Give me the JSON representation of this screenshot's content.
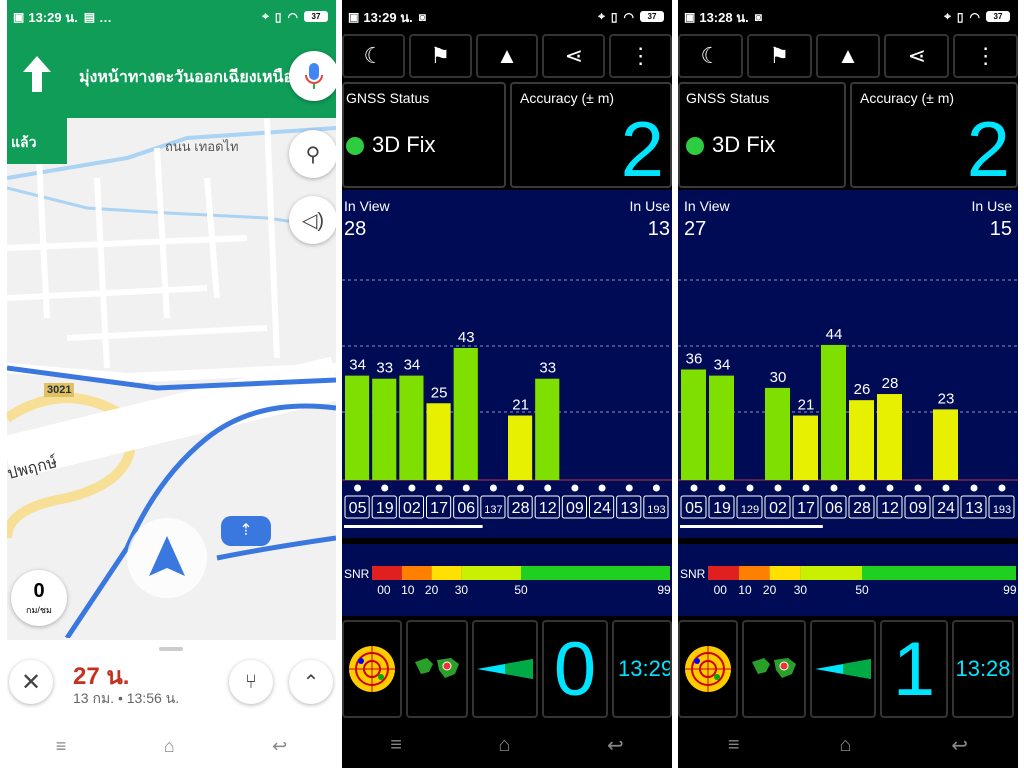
{
  "map": {
    "status": {
      "time": "13:29 น.",
      "extra": "…",
      "battery": "37"
    },
    "instruction": "มุ่งหน้าทางตะวันออกเฉียงเหนือ",
    "then_label": "แล้ว",
    "street_name": "ถนน เทอดไท",
    "road_badge": "3021",
    "road_name": "ปพฤกษ์",
    "speed_value": "0",
    "speed_unit": "กม/ชม",
    "eta_duration": "27 น.",
    "eta_details": "13 กม. • 13:56 น."
  },
  "gps": [
    {
      "status": {
        "time": "13:29 น.",
        "battery": "37"
      },
      "gnss_label": "GNSS Status",
      "fix": "3D Fix",
      "accuracy_label": "Accuracy (± m)",
      "accuracy": "2",
      "in_view_label": "In View",
      "in_view": "28",
      "in_use_label": "In Use",
      "in_use": "13",
      "speed": "0",
      "clock": "13:29",
      "bars": [
        {
          "prn": "05",
          "snr": 34,
          "color": "#7fe000"
        },
        {
          "prn": "19",
          "snr": 33,
          "color": "#7fe000"
        },
        {
          "prn": "02",
          "snr": 34,
          "color": "#7fe000"
        },
        {
          "prn": "17",
          "snr": 25,
          "color": "#e6f000"
        },
        {
          "prn": "06",
          "snr": 43,
          "color": "#7fe000"
        },
        {
          "prn": "137",
          "snr": 0,
          "color": "#7fe000"
        },
        {
          "prn": "28",
          "snr": 21,
          "color": "#e6f000"
        },
        {
          "prn": "12",
          "snr": 33,
          "color": "#7fe000"
        },
        {
          "prn": "09",
          "snr": 0,
          "color": "#7fe000"
        },
        {
          "prn": "24",
          "snr": 0,
          "color": "#7fe000"
        },
        {
          "prn": "13",
          "snr": 0,
          "color": "#7fe000"
        },
        {
          "prn": "193",
          "snr": 0,
          "color": "#7fe000"
        }
      ]
    },
    {
      "status": {
        "time": "13:28 น.",
        "battery": "37"
      },
      "gnss_label": "GNSS Status",
      "fix": "3D Fix",
      "accuracy_label": "Accuracy (± m)",
      "accuracy": "2",
      "in_view_label": "In View",
      "in_view": "27",
      "in_use_label": "In Use",
      "in_use": "15",
      "speed": "1",
      "clock": "13:28",
      "bars": [
        {
          "prn": "05",
          "snr": 36,
          "color": "#7fe000"
        },
        {
          "prn": "19",
          "snr": 34,
          "color": "#7fe000"
        },
        {
          "prn": "129",
          "snr": 0,
          "color": "#7fe000"
        },
        {
          "prn": "02",
          "snr": 30,
          "color": "#7fe000"
        },
        {
          "prn": "17",
          "snr": 21,
          "color": "#e6f000"
        },
        {
          "prn": "06",
          "snr": 44,
          "color": "#7fe000"
        },
        {
          "prn": "28",
          "snr": 26,
          "color": "#e6f000"
        },
        {
          "prn": "12",
          "snr": 28,
          "color": "#e6f000"
        },
        {
          "prn": "09",
          "snr": 0,
          "color": "#7fe000"
        },
        {
          "prn": "24",
          "snr": 23,
          "color": "#e6f000"
        },
        {
          "prn": "13",
          "snr": 0,
          "color": "#7fe000"
        },
        {
          "prn": "193",
          "snr": 0,
          "color": "#7fe000"
        }
      ]
    }
  ],
  "snr_scale": {
    "label": "SNR",
    "ticks": [
      "00",
      "10",
      "20",
      "30",
      "50",
      "99"
    ]
  },
  "colors": {
    "map_green": "#0f9d58",
    "gps_cyan": "#00e5ff",
    "gps_panel_bg": "#000b55",
    "eta_red": "#c5301f"
  }
}
